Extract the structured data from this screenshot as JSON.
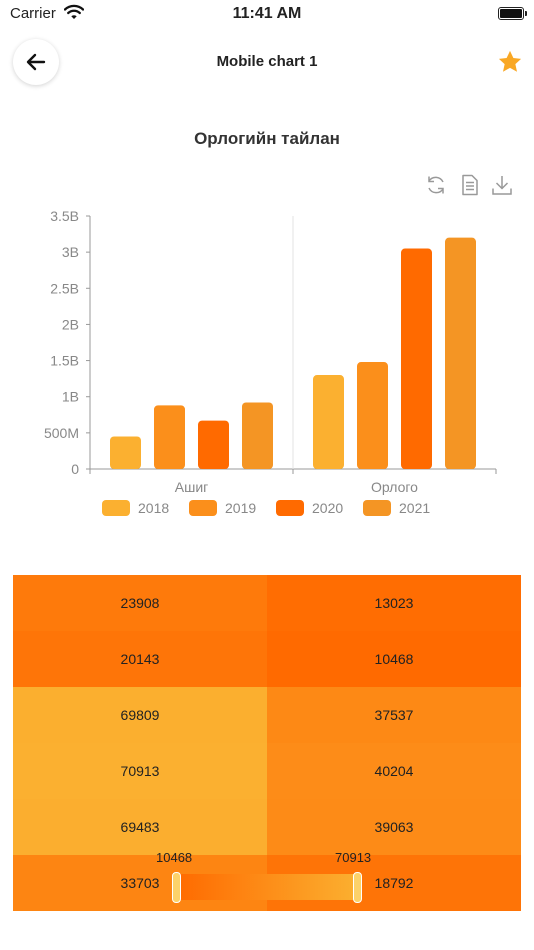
{
  "status_bar": {
    "carrier": "Carrier",
    "time": "11:41 AM"
  },
  "nav": {
    "title": "Mobile chart 1",
    "back_icon": "arrow-left",
    "favorite_icon": "star"
  },
  "colors": {
    "c2018": "#fbb030",
    "c2019": "#fb8f1b",
    "c2020": "#ff6a00",
    "c2021": "#f49524",
    "star": "#f9a825"
  },
  "toolbox": [
    "restore-icon",
    "data-view-icon",
    "save-image-icon"
  ],
  "chart_data": {
    "type": "bar",
    "title": "Орлогийн тайлан",
    "categories": [
      "Ашиг",
      "Орлого"
    ],
    "y_ticks": [
      "0",
      "500M",
      "1B",
      "1.5B",
      "2B",
      "2.5B",
      "3B",
      "3.5B"
    ],
    "ylim": [
      0,
      3500000000
    ],
    "series": [
      {
        "name": "2018",
        "values": [
          450000000,
          1300000000
        ]
      },
      {
        "name": "2019",
        "values": [
          880000000,
          1480000000
        ]
      },
      {
        "name": "2020",
        "values": [
          670000000,
          3050000000
        ]
      },
      {
        "name": "2021",
        "values": [
          920000000,
          3200000000
        ]
      }
    ],
    "legend_position": "bottom"
  },
  "heatmap": {
    "rows": [
      [
        "23908",
        "13023"
      ],
      [
        "20143",
        "10468"
      ],
      [
        "69809",
        "37537"
      ],
      [
        "70913",
        "40204"
      ],
      [
        "69483",
        "39063"
      ],
      [
        "33703",
        "18792"
      ]
    ],
    "visual_map": {
      "min_label": "10468",
      "max_label": "70913",
      "low_color": "#ff6a00",
      "high_color": "#fbb030"
    }
  }
}
